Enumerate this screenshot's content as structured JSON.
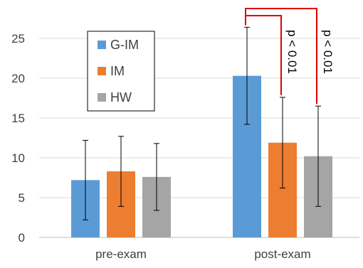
{
  "chart_data": {
    "type": "bar",
    "categories": [
      "pre-exam",
      "post-exam"
    ],
    "series": [
      {
        "name": "G-IM",
        "color": "#5b9bd5",
        "values": [
          7.2,
          20.3
        ],
        "error": [
          5.0,
          6.1
        ]
      },
      {
        "name": "IM",
        "color": "#ed7d31",
        "values": [
          8.3,
          11.9
        ],
        "error": [
          4.4,
          5.7
        ]
      },
      {
        "name": "HW",
        "color": "#a5a5a5",
        "values": [
          7.6,
          10.2
        ],
        "error": [
          4.2,
          6.3
        ]
      }
    ],
    "ylim": [
      0,
      25
    ],
    "yticks": [
      "0",
      "5",
      "10",
      "15",
      "20",
      "25"
    ],
    "grid": true,
    "legend_position": "top-left",
    "significance": [
      {
        "label": "p < 0.01",
        "category": "post-exam",
        "from": "G-IM",
        "to": "IM"
      },
      {
        "label": "p < 0.01",
        "category": "post-exam",
        "from": "G-IM",
        "to": "HW"
      }
    ],
    "significance_color": "#e00000"
  }
}
